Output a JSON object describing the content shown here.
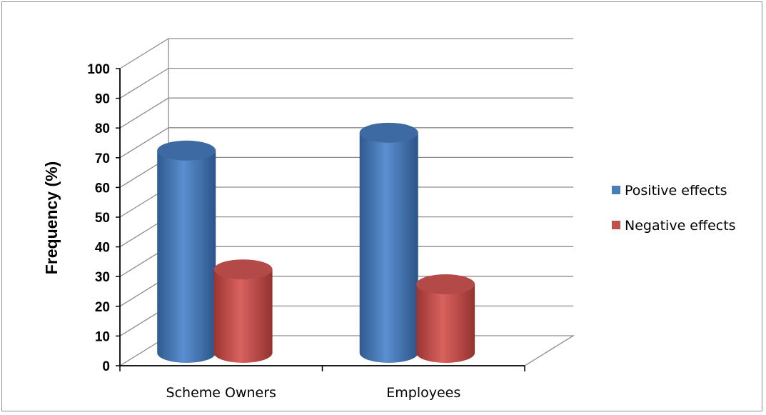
{
  "chart_data": {
    "type": "bar",
    "style": "3d-cylinder",
    "categories": [
      "Scheme Owners",
      "Employees"
    ],
    "series": [
      {
        "name": "Positive effects",
        "values": [
          70,
          76
        ],
        "color": "#4a7ebb"
      },
      {
        "name": "Negative effects",
        "values": [
          30,
          25
        ],
        "color": "#c0504d"
      }
    ],
    "title": "",
    "xlabel": "",
    "ylabel": "Frequency (%)",
    "ylim": [
      0,
      100
    ],
    "yticks": [
      0,
      10,
      20,
      30,
      40,
      50,
      60,
      70,
      80,
      90,
      100
    ],
    "grid": true,
    "legend": "right"
  }
}
